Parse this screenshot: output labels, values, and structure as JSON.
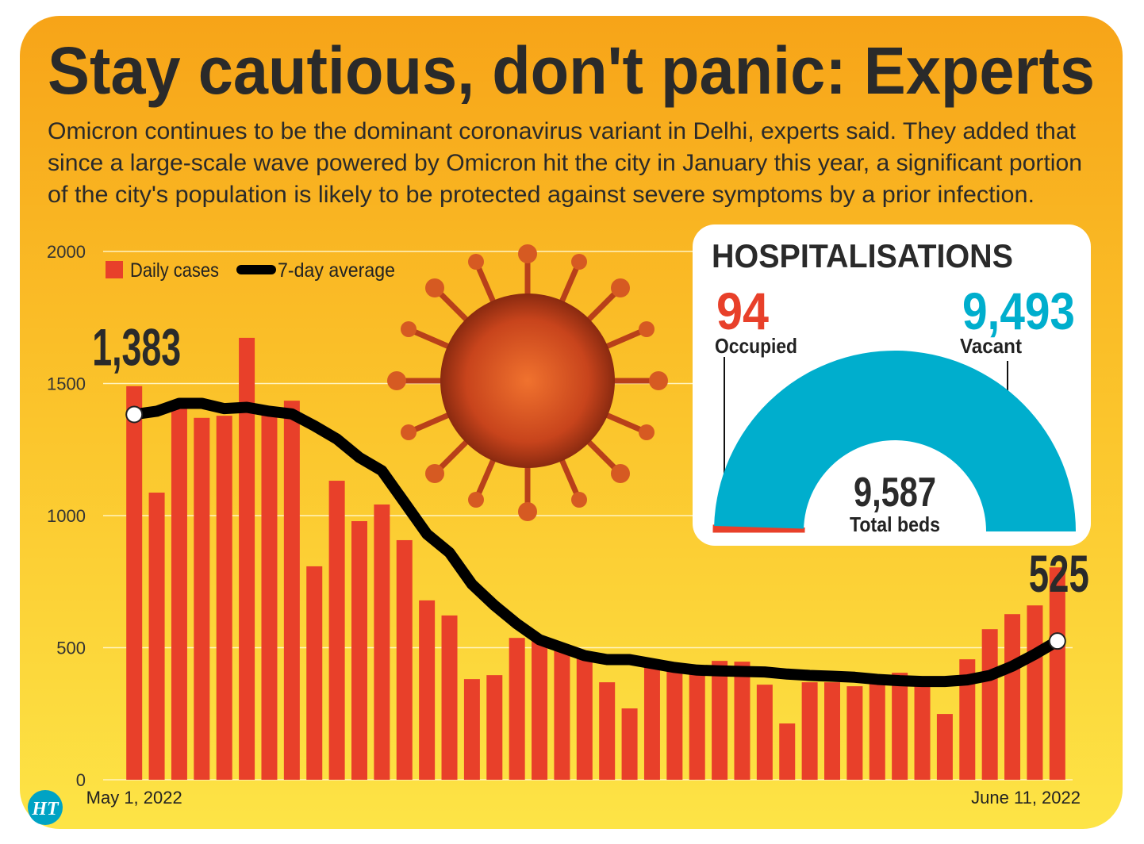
{
  "header": {
    "title": "Stay cautious, don't panic: Experts",
    "subtitle": [
      "Omicron continues to be the dominant coronavirus variant in Delhi, experts said. They added that",
      "since a large-scale wave powered by Omicron hit the city in January this year, a significant portion",
      "of the city's population is likely to be protected against severe symptoms by a prior infection."
    ],
    "logo": "HT"
  },
  "chart_data": [
    {
      "type": "bar",
      "categories": [
        "May 1, 2022",
        null,
        null,
        null,
        null,
        null,
        null,
        null,
        null,
        null,
        null,
        null,
        null,
        null,
        null,
        null,
        null,
        null,
        null,
        null,
        null,
        null,
        null,
        null,
        null,
        null,
        null,
        null,
        null,
        null,
        null,
        null,
        null,
        null,
        null,
        null,
        null,
        null,
        null,
        null,
        null,
        "June 11, 2022"
      ],
      "series": [
        {
          "name": "Daily cases",
          "type": "bar",
          "color": "#e8402a",
          "values": [
            1490,
            1087,
            1405,
            1370,
            1378,
            1673,
            1390,
            1435,
            808,
            1132,
            979,
            1042,
            907,
            679,
            622,
            381,
            396,
            537,
            525,
            504,
            474,
            369,
            270,
            435,
            414,
            429,
            450,
            447,
            360,
            213,
            369,
            369,
            354,
            384,
            405,
            375,
            249,
            456,
            570,
            627,
            660,
            804
          ]
        },
        {
          "name": "7-day average",
          "type": "line",
          "color": "#000000",
          "values": [
            1383,
            1395,
            1425,
            1425,
            1405,
            1410,
            1395,
            1385,
            1340,
            1290,
            1220,
            1170,
            1050,
            930,
            860,
            740,
            660,
            590,
            530,
            500,
            470,
            455,
            455,
            440,
            425,
            415,
            412,
            410,
            408,
            400,
            395,
            392,
            388,
            380,
            375,
            372,
            372,
            378,
            395,
            430,
            475,
            525
          ],
          "value_labels": [
            "1,383",
            null,
            null,
            null,
            null,
            null,
            null,
            null,
            null,
            null,
            null,
            null,
            null,
            null,
            null,
            null,
            null,
            null,
            null,
            null,
            null,
            null,
            null,
            null,
            null,
            null,
            null,
            null,
            null,
            null,
            null,
            null,
            null,
            null,
            null,
            null,
            null,
            null,
            null,
            null,
            null,
            "525"
          ]
        }
      ],
      "ylim": [
        0,
        2000
      ],
      "yticks": [
        0,
        500,
        1000,
        1500,
        2000
      ],
      "grid": true,
      "legend": "top-left"
    },
    {
      "type": "semicircle",
      "title": "HOSPITALISATIONS",
      "categories": [
        "Occupied",
        "Vacant"
      ],
      "values": [
        94,
        9493
      ],
      "value_labels": [
        "94",
        "9,493"
      ],
      "colors": [
        "#e8402a",
        "#00aecd"
      ],
      "total": 9587,
      "total_label": "9,587",
      "total_caption": "Total beds"
    }
  ]
}
